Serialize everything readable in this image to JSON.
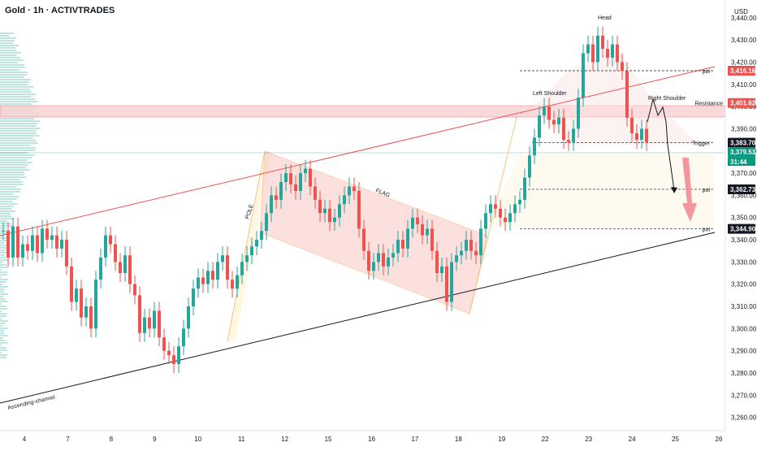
{
  "chart_data": {
    "type": "candlestick",
    "title": "Gold · 1h · ACTIVTRADES",
    "currency": "USD",
    "y_ticks": [
      3260,
      3270,
      3280,
      3290,
      3300,
      3310,
      3320,
      3330,
      3340,
      3350,
      3360,
      3370,
      3380,
      3390,
      3400,
      3410,
      3420,
      3430,
      3440
    ],
    "ylim": [
      3254,
      3448
    ],
    "x_ticks": [
      "4",
      "7",
      "8",
      "9",
      "10",
      "11",
      "12",
      "15",
      "16",
      "17",
      "18",
      "19",
      "22",
      "23",
      "24",
      "25",
      "26"
    ],
    "grid": false,
    "colors": {
      "up": "#26a69a",
      "down": "#ef5350",
      "channel_upper": "#ef5350",
      "channel_lower": "#131722",
      "flag_fill": "#f9c7c4",
      "pole_fill": "#fff3d6",
      "resistance_fill": "#f8d0d0",
      "current_price": "#089981",
      "arrow": "#f28c93"
    },
    "series_points": [
      [
        0,
        3344
      ],
      [
        6,
        3332
      ],
      [
        12,
        3346
      ],
      [
        18,
        3332
      ],
      [
        24,
        3338
      ],
      [
        30,
        3335
      ],
      [
        36,
        3342
      ],
      [
        42,
        3334
      ],
      [
        48,
        3345
      ],
      [
        54,
        3340
      ],
      [
        60,
        3342
      ],
      [
        66,
        3336
      ],
      [
        72,
        3340
      ],
      [
        78,
        3328
      ],
      [
        84,
        3312
      ],
      [
        90,
        3318
      ],
      [
        96,
        3305
      ],
      [
        102,
        3310
      ],
      [
        108,
        3300
      ],
      [
        114,
        3322
      ],
      [
        120,
        3332
      ],
      [
        126,
        3342
      ],
      [
        132,
        3338
      ],
      [
        138,
        3330
      ],
      [
        144,
        3325
      ],
      [
        150,
        3333
      ],
      [
        156,
        3320
      ],
      [
        162,
        3315
      ],
      [
        168,
        3298
      ],
      [
        174,
        3305
      ],
      [
        180,
        3300
      ],
      [
        186,
        3308
      ],
      [
        192,
        3296
      ],
      [
        198,
        3290
      ],
      [
        204,
        3288
      ],
      [
        210,
        3284
      ],
      [
        216,
        3292
      ],
      [
        222,
        3300
      ],
      [
        228,
        3310
      ],
      [
        234,
        3318
      ],
      [
        240,
        3323
      ],
      [
        246,
        3320
      ],
      [
        252,
        3326
      ],
      [
        258,
        3322
      ],
      [
        264,
        3330
      ],
      [
        270,
        3333
      ],
      [
        276,
        3322
      ],
      [
        282,
        3318
      ],
      [
        288,
        3324
      ],
      [
        294,
        3330
      ],
      [
        300,
        3333
      ],
      [
        306,
        3337
      ],
      [
        312,
        3340
      ],
      [
        318,
        3344
      ],
      [
        324,
        3352
      ],
      [
        330,
        3360
      ],
      [
        336,
        3358
      ],
      [
        342,
        3366
      ],
      [
        348,
        3370
      ],
      [
        354,
        3365
      ],
      [
        360,
        3362
      ],
      [
        366,
        3370
      ],
      [
        372,
        3372
      ],
      [
        378,
        3364
      ],
      [
        384,
        3358
      ],
      [
        390,
        3352
      ],
      [
        396,
        3354
      ],
      [
        402,
        3348
      ],
      [
        408,
        3350
      ],
      [
        414,
        3356
      ],
      [
        420,
        3360
      ],
      [
        426,
        3364
      ],
      [
        432,
        3362
      ],
      [
        438,
        3345
      ],
      [
        444,
        3335
      ],
      [
        450,
        3326
      ],
      [
        456,
        3330
      ],
      [
        462,
        3334
      ],
      [
        468,
        3328
      ],
      [
        474,
        3332
      ],
      [
        480,
        3334
      ],
      [
        486,
        3340
      ],
      [
        492,
        3336
      ],
      [
        498,
        3345
      ],
      [
        504,
        3350
      ],
      [
        510,
        3347
      ],
      [
        516,
        3342
      ],
      [
        522,
        3345
      ],
      [
        528,
        3335
      ],
      [
        534,
        3325
      ],
      [
        540,
        3328
      ],
      [
        546,
        3312
      ],
      [
        552,
        3330
      ],
      [
        558,
        3333
      ],
      [
        564,
        3335
      ],
      [
        570,
        3340
      ],
      [
        576,
        3335
      ],
      [
        582,
        3333
      ],
      [
        588,
        3345
      ],
      [
        594,
        3352
      ],
      [
        600,
        3356
      ],
      [
        606,
        3354
      ],
      [
        612,
        3350
      ],
      [
        618,
        3348
      ],
      [
        624,
        3352
      ],
      [
        630,
        3356
      ],
      [
        636,
        3358
      ],
      [
        642,
        3368
      ],
      [
        648,
        3378
      ],
      [
        654,
        3386
      ],
      [
        660,
        3396
      ],
      [
        666,
        3400
      ],
      [
        672,
        3394
      ],
      [
        678,
        3392
      ],
      [
        684,
        3395
      ],
      [
        690,
        3385
      ],
      [
        696,
        3384
      ],
      [
        702,
        3390
      ],
      [
        708,
        3404
      ],
      [
        714,
        3424
      ],
      [
        720,
        3428
      ],
      [
        726,
        3420
      ],
      [
        732,
        3432
      ],
      [
        738,
        3426
      ],
      [
        744,
        3422
      ],
      [
        750,
        3428
      ],
      [
        756,
        3420
      ],
      [
        762,
        3416
      ],
      [
        768,
        3395
      ],
      [
        774,
        3388
      ],
      [
        780,
        3385
      ],
      [
        786,
        3390
      ],
      [
        792,
        3384
      ],
      [
        798,
        3378
      ]
    ],
    "price_tags": [
      {
        "label": "3,416.16",
        "value": 3416.16,
        "bg": "#ef5350",
        "note": "poi"
      },
      {
        "label": "3,401.62",
        "value": 3401.62,
        "bg": "#ef5350",
        "note": "Resistance"
      },
      {
        "label": "3,383.70",
        "value": 3383.7,
        "bg": "#131722",
        "note": "Trigger"
      },
      {
        "label": "3,379.53",
        "value": 3379.53,
        "bg": "#089981",
        "note": ""
      },
      {
        "label": "3,362.73",
        "value": 3362.73,
        "bg": "#131722",
        "note": "poi"
      },
      {
        "label": "3,344.90",
        "value": 3344.9,
        "bg": "#131722",
        "note": "poi"
      }
    ],
    "countdown": "31:44",
    "annotations": {
      "head": "Head",
      "left_shoulder": "Left Shoulder",
      "right_shoulder": "Right Shoulder",
      "flag": "FLAG",
      "pole": "POLE",
      "channel": "Ascending-channel"
    }
  }
}
